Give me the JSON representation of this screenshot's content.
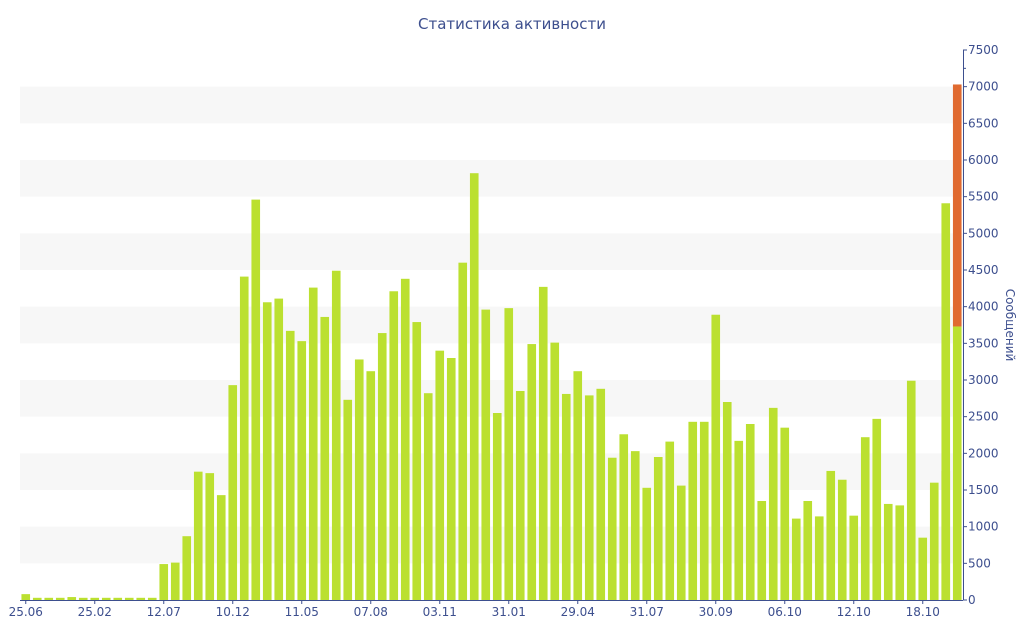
{
  "chart_data": {
    "type": "bar",
    "title": "Статистика активности",
    "xlabel": "",
    "ylabel": "Сообщений",
    "ylim": [
      0,
      7500
    ],
    "yticks": [
      0,
      500,
      1000,
      1500,
      2000,
      2500,
      3000,
      3500,
      4000,
      4500,
      5000,
      5500,
      6000,
      6500,
      7000,
      7500
    ],
    "y_axis_side": "right",
    "grid": "alternating horizontal bands",
    "x_tick_labels": [
      {
        "index": 0,
        "label": "25.06"
      },
      {
        "index": 6,
        "label": "25.02"
      },
      {
        "index": 12,
        "label": "12.07"
      },
      {
        "index": 18,
        "label": "10.12"
      },
      {
        "index": 24,
        "label": "11.05"
      },
      {
        "index": 30,
        "label": "07.08"
      },
      {
        "index": 36,
        "label": "03.11"
      },
      {
        "index": 42,
        "label": "31.01"
      },
      {
        "index": 48,
        "label": "29.04"
      },
      {
        "index": 54,
        "label": "31.07"
      },
      {
        "index": 60,
        "label": "30.09"
      },
      {
        "index": 66,
        "label": "06.10"
      },
      {
        "index": 72,
        "label": "12.10"
      },
      {
        "index": 78,
        "label": "18.10"
      }
    ],
    "series": [
      {
        "color": "#bbe030",
        "values": [
          80,
          30,
          30,
          30,
          40,
          30,
          30,
          30,
          30,
          30,
          30,
          30,
          490,
          510,
          870,
          1750,
          1730,
          1430,
          2930,
          4410,
          5460,
          4060,
          4110,
          3670,
          3530,
          4260,
          3860,
          4490,
          2730,
          3280,
          3120,
          3640,
          4210,
          4380,
          3790,
          2820,
          3400,
          3300,
          4600,
          5820,
          3960,
          2550,
          3980,
          2850,
          3490,
          4270,
          3510,
          2810,
          3120,
          2790,
          2880,
          1940,
          2260,
          2030,
          1530,
          1950,
          2160,
          1560,
          2430,
          2430,
          3890,
          2700,
          2170,
          2400,
          1350,
          2620,
          2350,
          1110,
          1350,
          1140,
          1760,
          1640,
          1150,
          2220,
          2470,
          1310,
          1290,
          2990,
          850,
          1600,
          1760,
          3730
        ]
      },
      {
        "color": "#e06a30",
        "values": [
          0,
          0,
          0,
          0,
          0,
          0,
          0,
          0,
          0,
          0,
          0,
          0,
          0,
          0,
          0,
          0,
          0,
          0,
          0,
          0,
          0,
          0,
          0,
          0,
          0,
          0,
          0,
          0,
          0,
          0,
          0,
          0,
          0,
          0,
          0,
          0,
          0,
          0,
          0,
          0,
          0,
          0,
          0,
          0,
          0,
          0,
          0,
          0,
          0,
          0,
          0,
          0,
          0,
          0,
          0,
          0,
          0,
          0,
          0,
          0,
          0,
          0,
          0,
          0,
          0,
          0,
          0,
          0,
          0,
          0,
          0,
          0,
          0,
          0,
          0,
          0,
          0,
          0,
          0,
          0,
          0,
          3300
        ]
      }
    ],
    "overlay_values": [
      0,
      0,
      0,
      0,
      0,
      0,
      0,
      0,
      0,
      0,
      0,
      0,
      0,
      0,
      0,
      0,
      0,
      0,
      0,
      0,
      0,
      0,
      0,
      0,
      0,
      0,
      0,
      0,
      0,
      0,
      0,
      0,
      0,
      0,
      0,
      0,
      0,
      0,
      0,
      0,
      0,
      0,
      0,
      0,
      0,
      0,
      0,
      0,
      0,
      0,
      0,
      0,
      0,
      0,
      0,
      0,
      0,
      0,
      0,
      0,
      0,
      0,
      0,
      0,
      0,
      0,
      0,
      0,
      0,
      0,
      0,
      0,
      0,
      0,
      0,
      0,
      0,
      0,
      0,
      0,
      5410,
      0
    ],
    "overlay_index": 80
  }
}
